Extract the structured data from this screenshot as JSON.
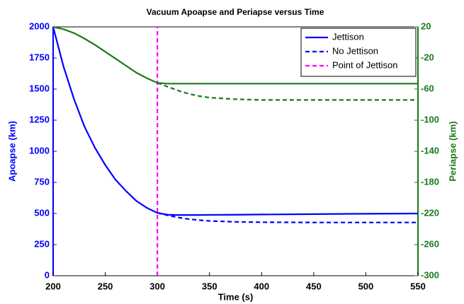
{
  "chart_data": {
    "type": "line",
    "title": "Vacuum Apoapse and Periapse versus Time",
    "x_label": "Time (s)",
    "y_label": "Apoapse (km)",
    "y2_label": "Periapse (km)",
    "x": [
      200,
      210,
      220,
      230,
      240,
      250,
      260,
      270,
      280,
      290,
      300,
      310,
      320,
      330,
      340,
      350,
      375,
      400,
      450,
      500,
      550
    ],
    "xlim": [
      200,
      550
    ],
    "xticks": [
      200,
      250,
      300,
      350,
      400,
      450,
      500,
      550
    ],
    "ylim": [
      0,
      2000
    ],
    "yticks": [
      0,
      250,
      500,
      750,
      1000,
      1250,
      1500,
      1750,
      2000
    ],
    "y2lim": [
      -300,
      20
    ],
    "y2ticks": [
      -300,
      -260,
      -220,
      -180,
      -140,
      -100,
      -60,
      -20,
      20
    ],
    "legend": "upper right",
    "series": [
      {
        "name": "Jettison",
        "color": "#0000ff",
        "dash": "solid",
        "values": [
          2000,
          1680,
          1420,
          1200,
          1030,
          890,
          770,
          680,
          600,
          545,
          505,
          490,
          488,
          488,
          488,
          489,
          490,
          492,
          495,
          498,
          500
        ]
      },
      {
        "name": "No Jettison",
        "color": "#0000ff",
        "dash": "dashed",
        "values": [
          null,
          null,
          null,
          null,
          null,
          null,
          null,
          null,
          null,
          null,
          505,
          485,
          468,
          455,
          447,
          440,
          433,
          430,
          428,
          428,
          428
        ]
      },
      {
        "name": "Point of Jettison",
        "color": "#ff00ff",
        "dash": "dashed",
        "x": [
          300,
          300
        ],
        "values": [
          0,
          2000
        ]
      },
      {
        "color": "#1a7a1a",
        "dash": "solid",
        "axis": "y2",
        "values": [
          20,
          17,
          12,
          5,
          -3,
          -12,
          -21,
          -30,
          -39,
          -46,
          -52,
          -53,
          -53,
          -53,
          -53,
          -53,
          -53,
          -53,
          -53,
          -53,
          -53
        ]
      },
      {
        "color": "#1a7a1a",
        "dash": "dashed",
        "axis": "y2",
        "values": [
          null,
          null,
          null,
          null,
          null,
          null,
          null,
          null,
          null,
          null,
          -52,
          -57,
          -62,
          -66,
          -69,
          -71,
          -73,
          -74,
          -74,
          -74,
          -74
        ]
      }
    ]
  }
}
